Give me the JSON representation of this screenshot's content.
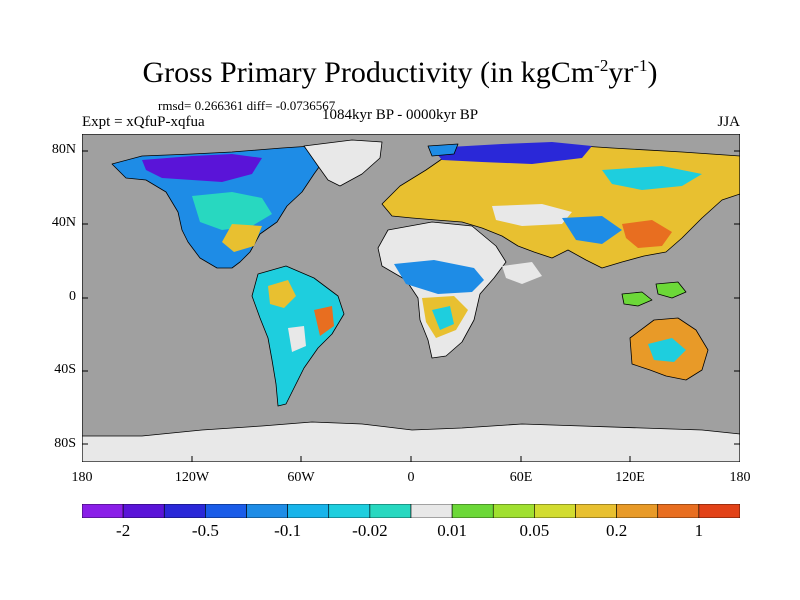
{
  "title": {
    "main": "Gross Primary Productivity (in kgCm",
    "exp1": "-2",
    "mid": "yr",
    "exp2": "-1",
    "end": ")"
  },
  "stats": "rmsd= 0.266361 diff= -0.0736567",
  "expt": "Expt = xQfuP-xqfua",
  "period": "1084kyr BP - 0000kyr BP",
  "season": "JJA",
  "lat_labels": [
    "80N",
    "40N",
    "0",
    "40S",
    "80S"
  ],
  "lon_labels": [
    "180",
    "120W",
    "60W",
    "0",
    "60E",
    "120E",
    "180"
  ],
  "colorbar": {
    "colors": [
      "#8a1ee8",
      "#5a14d8",
      "#2a28d8",
      "#1a5ce8",
      "#1e8ce6",
      "#18b4ea",
      "#1ecede",
      "#28d8c0",
      "#e8e8e8",
      "#6cd838",
      "#a0e030",
      "#d2dc30",
      "#e8c030",
      "#e89a28",
      "#e86e20",
      "#e24218"
    ],
    "labels": [
      "-2",
      "-0.5",
      "-0.1",
      "-0.02",
      "0.01",
      "0.05",
      "0.2",
      "1"
    ]
  },
  "colors": {
    "ocean": "#a0a0a0",
    "no_change": "#e8e8e8"
  }
}
